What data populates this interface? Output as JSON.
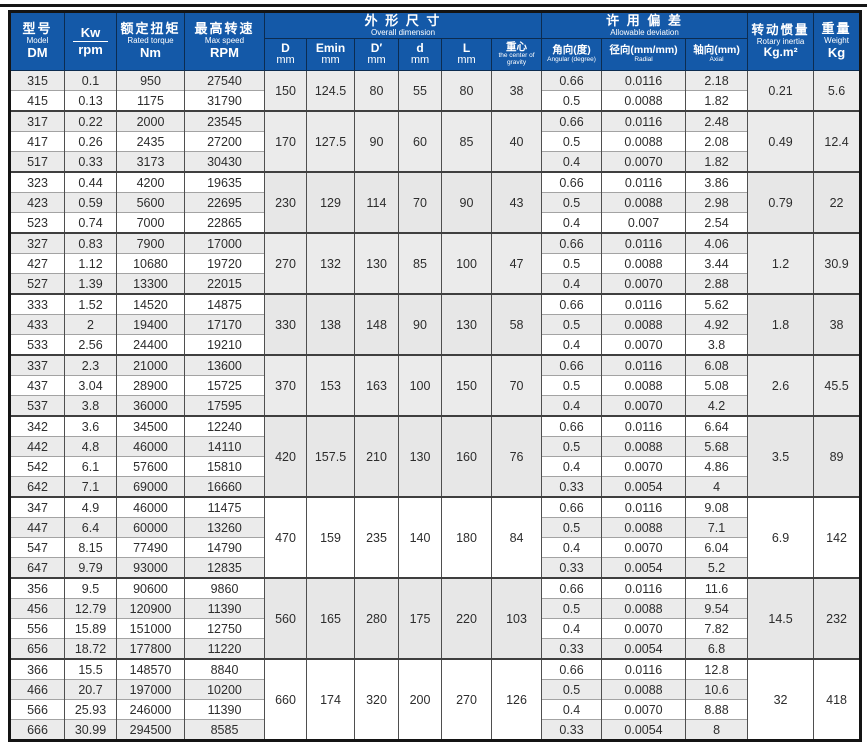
{
  "colors": {
    "header_bg": "#1459a8",
    "header_text": "#ffffff",
    "stripe_gray": "#ebebeb",
    "frame_black": "#141414"
  },
  "header": {
    "model": {
      "zh": "型号",
      "en": "Model",
      "unit": "DM"
    },
    "kw": {
      "top": "Kw",
      "bottom": "rpm"
    },
    "torque": {
      "zh": "额定扭矩",
      "en": "Rated torque",
      "unit": "Nm"
    },
    "speed": {
      "zh": "最高转速",
      "en": "Max speed",
      "unit": "RPM"
    },
    "dimension_group": {
      "zh": "外 形 尺 寸",
      "en": "Overall dimension"
    },
    "deviation_group": {
      "zh": "许 用 偏 差",
      "en": "Allowable deviation"
    },
    "dim_cols": [
      {
        "main": "D",
        "sub": "mm"
      },
      {
        "main": "Emin",
        "sub": "mm"
      },
      {
        "main": "D′",
        "sub": "mm"
      },
      {
        "main": "d",
        "sub": "mm"
      },
      {
        "main": "L",
        "sub": "mm"
      },
      {
        "main": "重心",
        "sub": "the center of gravity"
      }
    ],
    "dev_cols": [
      {
        "main": "角向(度)",
        "sub": "Angular (degree)"
      },
      {
        "main": "径向(mm/mm)",
        "sub": "Radial"
      },
      {
        "main": "轴向(mm)",
        "sub": "Axial"
      }
    ],
    "inertia": {
      "zh": "转动惯量",
      "en": "Rotary inertia",
      "unit": "Kg.m²"
    },
    "weight": {
      "zh": "重量",
      "en": "Weight",
      "unit": "Kg"
    }
  },
  "groups": [
    {
      "dims": {
        "D": "150",
        "Emin": "124.5",
        "Dp": "80",
        "d": "55",
        "L": "80",
        "cg": "38"
      },
      "inertia": "0.21",
      "weight": "5.6",
      "rows": [
        {
          "model": "315",
          "kw": "0.1",
          "torque": "950",
          "speed": "27540",
          "angular": "0.66",
          "radial": "0.0116",
          "axial": "2.18"
        },
        {
          "model": "415",
          "kw": "0.13",
          "torque": "1175",
          "speed": "31790",
          "angular": "0.5",
          "radial": "0.0088",
          "axial": "1.82"
        }
      ]
    },
    {
      "dims": {
        "D": "170",
        "Emin": "127.5",
        "Dp": "90",
        "d": "60",
        "L": "85",
        "cg": "40"
      },
      "inertia": "0.49",
      "weight": "12.4",
      "rows": [
        {
          "model": "317",
          "kw": "0.22",
          "torque": "2000",
          "speed": "23545",
          "angular": "0.66",
          "radial": "0.0116",
          "axial": "2.48"
        },
        {
          "model": "417",
          "kw": "0.26",
          "torque": "2435",
          "speed": "27200",
          "angular": "0.5",
          "radial": "0.0088",
          "axial": "2.08"
        },
        {
          "model": "517",
          "kw": "0.33",
          "torque": "3173",
          "speed": "30430",
          "angular": "0.4",
          "radial": "0.0070",
          "axial": "1.82"
        }
      ]
    },
    {
      "dims": {
        "D": "230",
        "Emin": "129",
        "Dp": "114",
        "d": "70",
        "L": "90",
        "cg": "43"
      },
      "inertia": "0.79",
      "weight": "22",
      "rows": [
        {
          "model": "323",
          "kw": "0.44",
          "torque": "4200",
          "speed": "19635",
          "angular": "0.66",
          "radial": "0.0116",
          "axial": "3.86"
        },
        {
          "model": "423",
          "kw": "0.59",
          "torque": "5600",
          "speed": "22695",
          "angular": "0.5",
          "radial": "0.0088",
          "axial": "2.98"
        },
        {
          "model": "523",
          "kw": "0.74",
          "torque": "7000",
          "speed": "22865",
          "angular": "0.4",
          "radial": "0.007",
          "axial": "2.54"
        }
      ]
    },
    {
      "dims": {
        "D": "270",
        "Emin": "132",
        "Dp": "130",
        "d": "85",
        "L": "100",
        "cg": "47"
      },
      "inertia": "1.2",
      "weight": "30.9",
      "rows": [
        {
          "model": "327",
          "kw": "0.83",
          "torque": "7900",
          "speed": "17000",
          "angular": "0.66",
          "radial": "0.0116",
          "axial": "4.06"
        },
        {
          "model": "427",
          "kw": "1.12",
          "torque": "10680",
          "speed": "19720",
          "angular": "0.5",
          "radial": "0.0088",
          "axial": "3.44"
        },
        {
          "model": "527",
          "kw": "1.39",
          "torque": "13300",
          "speed": "22015",
          "angular": "0.4",
          "radial": "0.0070",
          "axial": "2.88"
        }
      ]
    },
    {
      "dims": {
        "D": "330",
        "Emin": "138",
        "Dp": "148",
        "d": "90",
        "L": "130",
        "cg": "58"
      },
      "inertia": "1.8",
      "weight": "38",
      "rows": [
        {
          "model": "333",
          "kw": "1.52",
          "torque": "14520",
          "speed": "14875",
          "angular": "0.66",
          "radial": "0.0116",
          "axial": "5.62"
        },
        {
          "model": "433",
          "kw": "2",
          "torque": "19400",
          "speed": "17170",
          "angular": "0.5",
          "radial": "0.0088",
          "axial": "4.92"
        },
        {
          "model": "533",
          "kw": "2.56",
          "torque": "24400",
          "speed": "19210",
          "angular": "0.4",
          "radial": "0.0070",
          "axial": "3.8"
        }
      ]
    },
    {
      "dims": {
        "D": "370",
        "Emin": "153",
        "Dp": "163",
        "d": "100",
        "L": "150",
        "cg": "70"
      },
      "inertia": "2.6",
      "weight": "45.5",
      "rows": [
        {
          "model": "337",
          "kw": "2.3",
          "torque": "21000",
          "speed": "13600",
          "angular": "0.66",
          "radial": "0.0116",
          "axial": "6.08"
        },
        {
          "model": "437",
          "kw": "3.04",
          "torque": "28900",
          "speed": "15725",
          "angular": "0.5",
          "radial": "0.0088",
          "axial": "5.08"
        },
        {
          "model": "537",
          "kw": "3.8",
          "torque": "36000",
          "speed": "17595",
          "angular": "0.4",
          "radial": "0.0070",
          "axial": "4.2"
        }
      ]
    },
    {
      "dims": {
        "D": "420",
        "Emin": "157.5",
        "Dp": "210",
        "d": "130",
        "L": "160",
        "cg": "76"
      },
      "inertia": "3.5",
      "weight": "89",
      "rows": [
        {
          "model": "342",
          "kw": "3.6",
          "torque": "34500",
          "speed": "12240",
          "angular": "0.66",
          "radial": "0.0116",
          "axial": "6.64"
        },
        {
          "model": "442",
          "kw": "4.8",
          "torque": "46000",
          "speed": "14110",
          "angular": "0.5",
          "radial": "0.0088",
          "axial": "5.68"
        },
        {
          "model": "542",
          "kw": "6.1",
          "torque": "57600",
          "speed": "15810",
          "angular": "0.4",
          "radial": "0.0070",
          "axial": "4.86"
        },
        {
          "model": "642",
          "kw": "7.1",
          "torque": "69000",
          "speed": "16660",
          "angular": "0.33",
          "radial": "0.0054",
          "axial": "4"
        }
      ]
    },
    {
      "dims": {
        "D": "470",
        "Emin": "159",
        "Dp": "235",
        "d": "140",
        "L": "180",
        "cg": "84"
      },
      "inertia": "6.9",
      "weight": "142",
      "rows": [
        {
          "model": "347",
          "kw": "4.9",
          "torque": "46000",
          "speed": "11475",
          "angular": "0.66",
          "radial": "0.0116",
          "axial": "9.08"
        },
        {
          "model": "447",
          "kw": "6.4",
          "torque": "60000",
          "speed": "13260",
          "angular": "0.5",
          "radial": "0.0088",
          "axial": "7.1"
        },
        {
          "model": "547",
          "kw": "8.15",
          "torque": "77490",
          "speed": "14790",
          "angular": "0.4",
          "radial": "0.0070",
          "axial": "6.04"
        },
        {
          "model": "647",
          "kw": "9.79",
          "torque": "93000",
          "speed": "12835",
          "angular": "0.33",
          "radial": "0.0054",
          "axial": "5.2"
        }
      ]
    },
    {
      "dims": {
        "D": "560",
        "Emin": "165",
        "Dp": "280",
        "d": "175",
        "L": "220",
        "cg": "103"
      },
      "inertia": "14.5",
      "weight": "232",
      "rows": [
        {
          "model": "356",
          "kw": "9.5",
          "torque": "90600",
          "speed": "9860",
          "angular": "0.66",
          "radial": "0.0116",
          "axial": "11.6"
        },
        {
          "model": "456",
          "kw": "12.79",
          "torque": "120900",
          "speed": "11390",
          "angular": "0.5",
          "radial": "0.0088",
          "axial": "9.54"
        },
        {
          "model": "556",
          "kw": "15.89",
          "torque": "151000",
          "speed": "12750",
          "angular": "0.4",
          "radial": "0.0070",
          "axial": "7.82"
        },
        {
          "model": "656",
          "kw": "18.72",
          "torque": "177800",
          "speed": "11220",
          "angular": "0.33",
          "radial": "0.0054",
          "axial": "6.8"
        }
      ]
    },
    {
      "dims": {
        "D": "660",
        "Emin": "174",
        "Dp": "320",
        "d": "200",
        "L": "270",
        "cg": "126"
      },
      "inertia": "32",
      "weight": "418",
      "rows": [
        {
          "model": "366",
          "kw": "15.5",
          "torque": "148570",
          "speed": "8840",
          "angular": "0.66",
          "radial": "0.0116",
          "axial": "12.8"
        },
        {
          "model": "466",
          "kw": "20.7",
          "torque": "197000",
          "speed": "10200",
          "angular": "0.5",
          "radial": "0.0088",
          "axial": "10.6"
        },
        {
          "model": "566",
          "kw": "25.93",
          "torque": "246000",
          "speed": "11390",
          "angular": "0.4",
          "radial": "0.0070",
          "axial": "8.88"
        },
        {
          "model": "666",
          "kw": "30.99",
          "torque": "294500",
          "speed": "8585",
          "angular": "0.33",
          "radial": "0.0054",
          "axial": "8"
        }
      ]
    }
  ]
}
